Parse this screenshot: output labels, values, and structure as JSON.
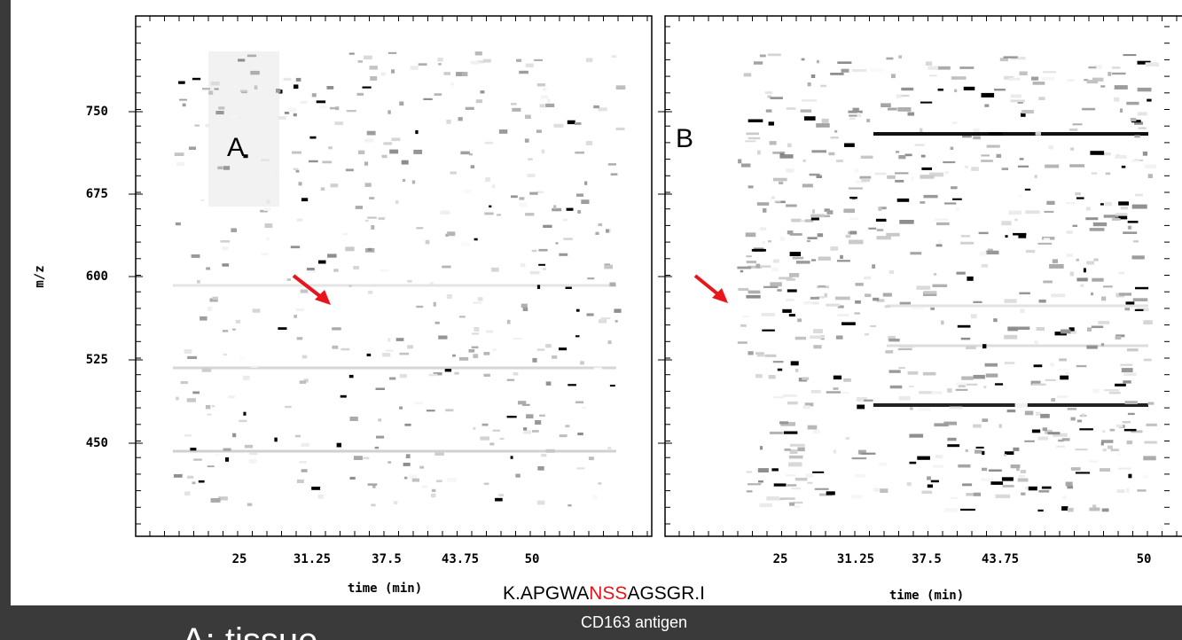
{
  "slide": {
    "panels": [
      {
        "label": "A",
        "y_axis_title": "m/z",
        "y_ticks": [
          "750",
          "675",
          "600",
          "525",
          "450"
        ],
        "x_ticks": [
          "25",
          "31.25",
          "37.5",
          "43.75",
          "50"
        ],
        "x_axis_title": "time (min)"
      },
      {
        "label": "B",
        "x_ticks": [
          "25",
          "31.25",
          "37.5",
          "43.75",
          "50"
        ],
        "x_axis_title": "time (min)"
      }
    ],
    "peptide": {
      "prefix": "K.APGWA",
      "glycosite": "NSS",
      "suffix": "AGSGR.I"
    },
    "protein": "CD163 antigen",
    "caption": "A: tissue"
  }
}
